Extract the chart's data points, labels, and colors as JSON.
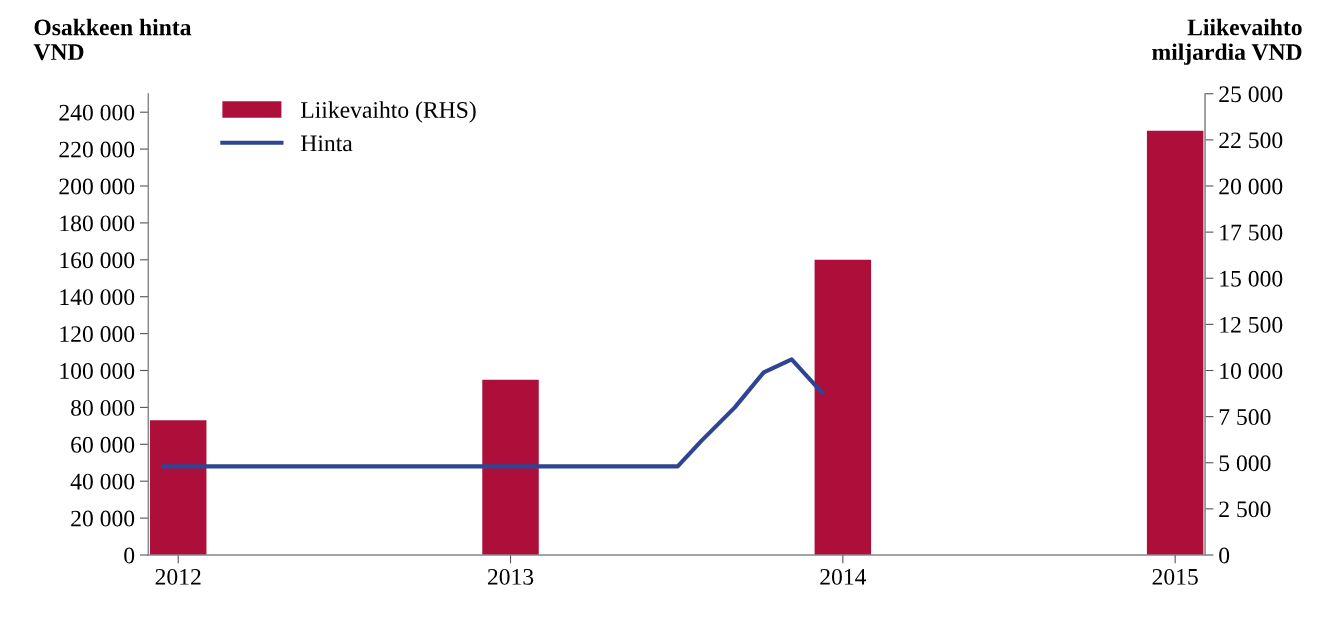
{
  "chart_data": {
    "type": "bar",
    "ylabel": "Osakkeen hinta\nVND",
    "y2label": "Liikevaihto\nmiljardia VND",
    "xlim": [
      2011.91,
      2015.09
    ],
    "xticks": [
      2012,
      2013,
      2014,
      2015
    ],
    "ylim": [
      0,
      250000
    ],
    "yticks": [
      0,
      {
        "value": 20000,
        "label": "20 000"
      },
      {
        "value": 40000,
        "label": "40 000"
      },
      {
        "value": 60000,
        "label": "60 000"
      },
      {
        "value": 80000,
        "label": "80 000"
      },
      {
        "value": 100000,
        "label": "100 000"
      },
      {
        "value": 120000,
        "label": "120 000"
      },
      {
        "value": 140000,
        "label": "140 000"
      },
      {
        "value": 160000,
        "label": "160 000"
      },
      {
        "value": 180000,
        "label": "180 000"
      },
      {
        "value": 200000,
        "label": "200 000"
      },
      {
        "value": 220000,
        "label": "220 000"
      },
      {
        "value": 240000,
        "label": "240 000"
      }
    ],
    "y2lim": [
      0,
      25000
    ],
    "y2ticks": [
      0,
      {
        "value": 2500,
        "label": "2 500"
      },
      {
        "value": 5000,
        "label": "5 000"
      },
      {
        "value": 7500,
        "label": "7 500"
      },
      {
        "value": 10000,
        "label": "10 000"
      },
      {
        "value": 12500,
        "label": "12 500"
      },
      {
        "value": 15000,
        "label": "15 000"
      },
      {
        "value": 17500,
        "label": "17 500"
      },
      {
        "value": 20000,
        "label": "20 000"
      },
      {
        "value": 22500,
        "label": "22 500"
      },
      {
        "value": 25000,
        "label": "25 000"
      }
    ],
    "grid": false,
    "legend": "top left",
    "series": [
      {
        "name": "Liikevaihto (RHS)",
        "axis": "y2",
        "color": "#ae0f3a",
        "x": [
          2012,
          2013,
          2014,
          2015
        ],
        "values": [
          7300,
          9500,
          16000,
          23000
        ]
      },
      {
        "name": "Hinta",
        "type": "line",
        "axis": "y",
        "color": "#2e4593",
        "x": [
          2011.955,
          2013.503,
          2013.575,
          2013.675,
          2013.762,
          2013.846,
          2013.937
        ],
        "values": [
          48000,
          48000,
          62000,
          80000,
          99000,
          106000,
          88000
        ]
      }
    ]
  }
}
